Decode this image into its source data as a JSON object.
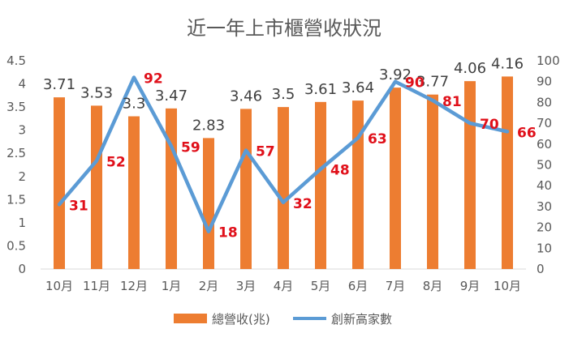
{
  "chart_data": {
    "type": "bar",
    "title": "近一年上市櫃營收狀況",
    "categories": [
      "10月",
      "11月",
      "12月",
      "1月",
      "2月",
      "3月",
      "4月",
      "5月",
      "6月",
      "7月",
      "8月",
      "9月",
      "10月"
    ],
    "series": [
      {
        "name": "總營收(兆)",
        "type": "bar",
        "axis": "left",
        "values": [
          3.71,
          3.53,
          3.3,
          3.47,
          2.83,
          3.46,
          3.5,
          3.61,
          3.64,
          3.92,
          3.77,
          4.06,
          4.16
        ],
        "labels": [
          "3.71",
          "3.53",
          "3.3",
          "3.47",
          "2.83",
          "3.46",
          "3.5",
          "3.61",
          "3.64",
          "3.92",
          "3.77",
          "4.06",
          "4.16"
        ]
      },
      {
        "name": "創新高家數",
        "type": "line",
        "axis": "right",
        "values": [
          31,
          52,
          92,
          59,
          18,
          57,
          32,
          48,
          63,
          90,
          81,
          70,
          66
        ],
        "labels": [
          "31",
          "52",
          "92",
          "59",
          "18",
          "57",
          "32",
          "48",
          "63",
          "90",
          "81",
          "70",
          "66"
        ]
      }
    ],
    "y_left": {
      "ylim": [
        0,
        4.5
      ],
      "ticks": [
        "0",
        "0.5",
        "1",
        "1.5",
        "2",
        "2.5",
        "3",
        "3.5",
        "4",
        "4.5"
      ]
    },
    "y_right": {
      "ylim": [
        0,
        100
      ],
      "ticks": [
        "0",
        "10",
        "20",
        "30",
        "40",
        "50",
        "60",
        "70",
        "80",
        "90",
        "100"
      ]
    },
    "legend_position": "bottom",
    "grid": false,
    "colors": {
      "bar": "#ed7d31",
      "line": "#5b9bd5",
      "line_label": "#e0101a",
      "text": "#595959"
    }
  }
}
